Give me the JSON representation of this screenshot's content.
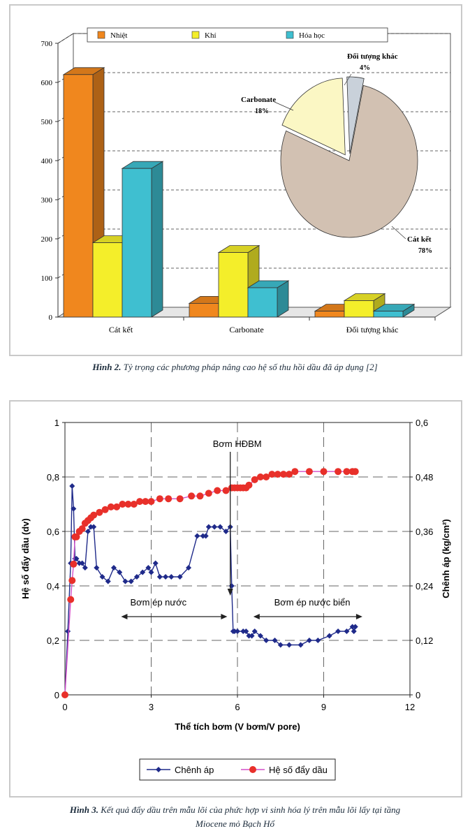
{
  "chart_data": [
    {
      "type": "bar",
      "subtype": "3d-bar-with-inset-pie",
      "categories": [
        "Cát kết",
        "Carbonate",
        "Đối tượng khác"
      ],
      "series": [
        {
          "name": "Nhiệt",
          "color": "#f0871e",
          "values": [
            620,
            35,
            15
          ]
        },
        {
          "name": "Khí",
          "color": "#f4ee2a",
          "values": [
            190,
            165,
            42
          ]
        },
        {
          "name": "Hóa học",
          "color": "#3fbfd0",
          "values": [
            380,
            75,
            15
          ]
        }
      ],
      "ylim": [
        0,
        700
      ],
      "yticks": [
        0,
        100,
        200,
        300,
        400,
        500,
        600,
        700
      ],
      "grid": true,
      "legend": "top",
      "pie": {
        "slices": [
          {
            "label": "Cát kết",
            "value": 78,
            "display": "78%",
            "color": "#d2c1b2"
          },
          {
            "label": "Carbonate",
            "value": 18,
            "display": "18%",
            "color": "#fbf7c4"
          },
          {
            "label": "Đối tượng khác",
            "value": 4,
            "display": "4%",
            "color": "#c9d1da"
          }
        ]
      }
    },
    {
      "type": "line",
      "xlabel": "Thể tích bơm (V bơm/V pore)",
      "ylabel": "Hệ số đẩy dầu (dv)",
      "y2label": "Chênh áp (kg/cm²)",
      "xlim": [
        0,
        12
      ],
      "ylim": [
        0,
        1
      ],
      "y2lim": [
        0,
        0.6
      ],
      "xticks": [
        0,
        3,
        6,
        9,
        12
      ],
      "yticks": [
        0,
        0.2,
        0.4,
        0.6,
        0.8,
        1
      ],
      "ytick_labels": [
        "0",
        "0,2",
        "0,4",
        "0,6",
        "0,8",
        "1"
      ],
      "y2ticks": [
        0,
        0.12,
        0.24,
        0.36,
        0.48,
        0.6
      ],
      "y2tick_labels": [
        "0",
        "0,12",
        "0,24",
        "0,36",
        "0,48",
        "0,6"
      ],
      "grid": true,
      "legend": "bottom",
      "series": [
        {
          "name": "Chênh áp",
          "axis": "right",
          "color": "#1f2a8a",
          "marker": "diamond",
          "x": [
            0,
            0.1,
            0.2,
            0.25,
            0.3,
            0.35,
            0.4,
            0.5,
            0.6,
            0.7,
            0.8,
            0.9,
            1.0,
            1.1,
            1.3,
            1.5,
            1.7,
            1.9,
            2.1,
            2.3,
            2.5,
            2.7,
            2.9,
            3.0,
            3.15,
            3.3,
            3.5,
            3.7,
            4.0,
            4.3,
            4.6,
            4.8,
            4.9,
            5.0,
            5.2,
            5.4,
            5.6,
            5.75,
            5.8,
            5.85,
            5.9,
            6.0,
            6.2,
            6.3,
            6.4,
            6.5,
            6.6,
            6.8,
            7.0,
            7.3,
            7.5,
            7.8,
            8.2,
            8.5,
            8.8,
            9.2,
            9.5,
            9.8,
            10.0,
            10.05,
            10.1
          ],
          "values": [
            0.0,
            0.14,
            0.29,
            0.46,
            0.41,
            0.3,
            0.3,
            0.29,
            0.29,
            0.28,
            0.36,
            0.37,
            0.37,
            0.28,
            0.26,
            0.25,
            0.28,
            0.27,
            0.25,
            0.25,
            0.26,
            0.27,
            0.28,
            0.27,
            0.29,
            0.26,
            0.26,
            0.26,
            0.26,
            0.28,
            0.35,
            0.35,
            0.35,
            0.37,
            0.37,
            0.37,
            0.36,
            0.37,
            0.24,
            0.14,
            0.14,
            0.14,
            0.14,
            0.14,
            0.13,
            0.13,
            0.14,
            0.13,
            0.12,
            0.12,
            0.11,
            0.11,
            0.11,
            0.12,
            0.12,
            0.13,
            0.14,
            0.14,
            0.15,
            0.14,
            0.15
          ]
        },
        {
          "name": "Hệ số đẩy dầu",
          "axis": "left",
          "color": "#e8302a",
          "marker": "circle",
          "x": [
            0,
            0.2,
            0.25,
            0.3,
            0.35,
            0.4,
            0.5,
            0.6,
            0.7,
            0.8,
            0.9,
            1.0,
            1.2,
            1.4,
            1.6,
            1.8,
            2.0,
            2.2,
            2.4,
            2.6,
            2.8,
            3.0,
            3.3,
            3.6,
            4.0,
            4.4,
            4.7,
            5.0,
            5.3,
            5.6,
            5.8,
            5.9,
            6.0,
            6.1,
            6.2,
            6.3,
            6.4,
            6.6,
            6.8,
            7.0,
            7.2,
            7.4,
            7.6,
            7.8,
            8.0,
            8.5,
            9.0,
            9.5,
            9.8,
            10.0,
            10.1
          ],
          "values": [
            0,
            0.35,
            0.42,
            0.48,
            0.58,
            0.58,
            0.6,
            0.61,
            0.63,
            0.64,
            0.65,
            0.66,
            0.67,
            0.68,
            0.69,
            0.69,
            0.7,
            0.7,
            0.7,
            0.71,
            0.71,
            0.71,
            0.72,
            0.72,
            0.72,
            0.73,
            0.73,
            0.74,
            0.75,
            0.75,
            0.76,
            0.76,
            0.76,
            0.76,
            0.76,
            0.76,
            0.77,
            0.79,
            0.8,
            0.8,
            0.81,
            0.81,
            0.81,
            0.81,
            0.82,
            0.82,
            0.82,
            0.82,
            0.82,
            0.82,
            0.82
          ]
        }
      ],
      "annotations": [
        "Bơm HĐBM",
        "Bơm ép nước",
        "Bơm ép nước biển"
      ]
    }
  ],
  "captions": {
    "fig2_label": "Hình 2.",
    "fig2_text": " Tỷ trọng các phương pháp nâng cao hệ số thu hồi dầu đã áp dụng [2]",
    "fig3_label": "Hình 3.",
    "fig3_line1": " Kết quả đẩy dầu trên mẫu lõi của phức hợp vi sinh hóa lý trên mẫu lõi lấy tại tầng",
    "fig3_line2": "Miocene mỏ Bạch Hổ"
  }
}
